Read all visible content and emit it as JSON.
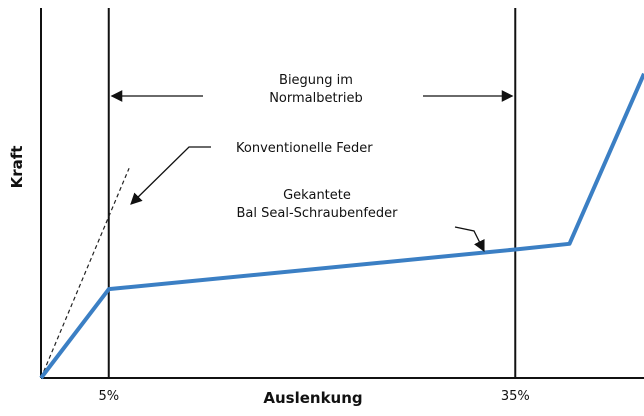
{
  "chart_data": {
    "type": "line",
    "xlabel": "Auslenkung",
    "ylabel": "Kraft",
    "x_ticks": [
      {
        "value": 5,
        "label": "5%"
      },
      {
        "value": 35,
        "label": "35%"
      }
    ],
    "xlim": [
      0,
      44.5
    ],
    "ylim": [
      0,
      100
    ],
    "grid": false,
    "legend": "none",
    "series": [
      {
        "key": "bal_seal",
        "name": "Gekantete Bal Seal-Schraubenfeder",
        "style": "solid",
        "color": "#3b7fc4",
        "points": [
          {
            "x": 0,
            "y": 0
          },
          {
            "x": 5,
            "y": 23.5
          },
          {
            "x": 35,
            "y": 34.0
          },
          {
            "x": 39,
            "y": 35.5
          },
          {
            "x": 44.5,
            "y": 80.5
          }
        ]
      },
      {
        "key": "konventionell",
        "name": "Konventionelle Feder",
        "style": "dashed",
        "color": "#222222",
        "points": [
          {
            "x": 0,
            "y": 0
          },
          {
            "x": 6.5,
            "y": 55.5
          }
        ]
      }
    ],
    "annotations": {
      "range": {
        "from": 5,
        "to": 35,
        "lines": [
          "Biegung im",
          "Normalbetrieb"
        ]
      },
      "konventionell": [
        "Konventionelle Feder"
      ],
      "bal_seal": [
        "Gekantete",
        "Bal Seal-Schraubenfeder"
      ]
    }
  },
  "colors": {
    "curve": "#3b7fc4",
    "axis": "#111111",
    "dashed": "#222222"
  }
}
